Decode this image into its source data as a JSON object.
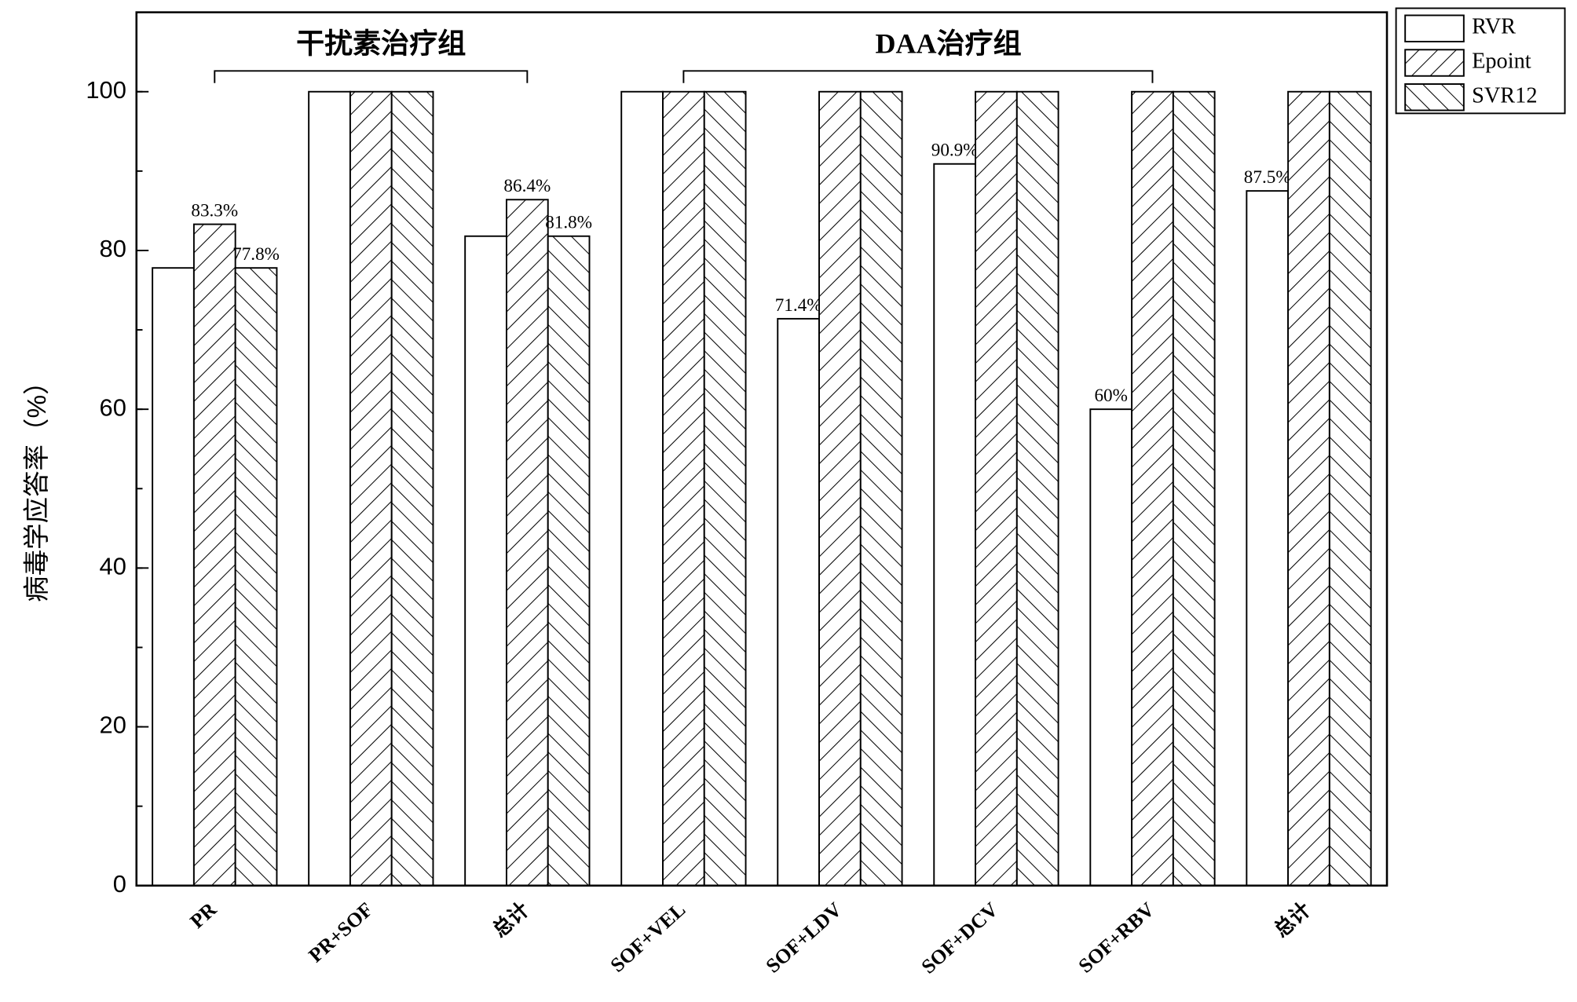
{
  "chart_data": {
    "type": "bar",
    "y_label": "病毒学应答率（%）",
    "categories": [
      "PR",
      "PR+SOF",
      "总计",
      "SOF+VEL",
      "SOF+LDV",
      "SOF+DCV",
      "SOF+RBV",
      "总计"
    ],
    "series": [
      {
        "name": "RVR",
        "color": "#ffffff",
        "hatch": "none",
        "values": [
          77.8,
          100,
          81.8,
          100,
          71.4,
          90.9,
          60,
          87.5
        ],
        "value_labels": [
          null,
          null,
          null,
          null,
          "71.4%",
          "90.9%",
          "60%",
          "87.5%"
        ]
      },
      {
        "name": "Epoint",
        "color": "#ffffff",
        "hatch": "/",
        "values": [
          83.3,
          100,
          86.4,
          100,
          100,
          100,
          100,
          100
        ],
        "value_labels": [
          "83.3%",
          null,
          "86.4%",
          null,
          null,
          null,
          null,
          null
        ]
      },
      {
        "name": "SVR12",
        "color": "#ffffff",
        "hatch": "\\",
        "values": [
          77.8,
          100,
          81.8,
          100,
          100,
          100,
          100,
          100
        ],
        "value_labels": [
          "77.8%",
          null,
          "81.8%",
          null,
          null,
          null,
          null,
          null
        ]
      }
    ],
    "annotations": [
      "干扰素治疗组",
      "DAA治疗组"
    ],
    "ylim": [
      0,
      110
    ],
    "yticks": [
      0,
      20,
      40,
      60,
      80,
      100
    ],
    "grid": false,
    "legend": "outside-top-right"
  }
}
